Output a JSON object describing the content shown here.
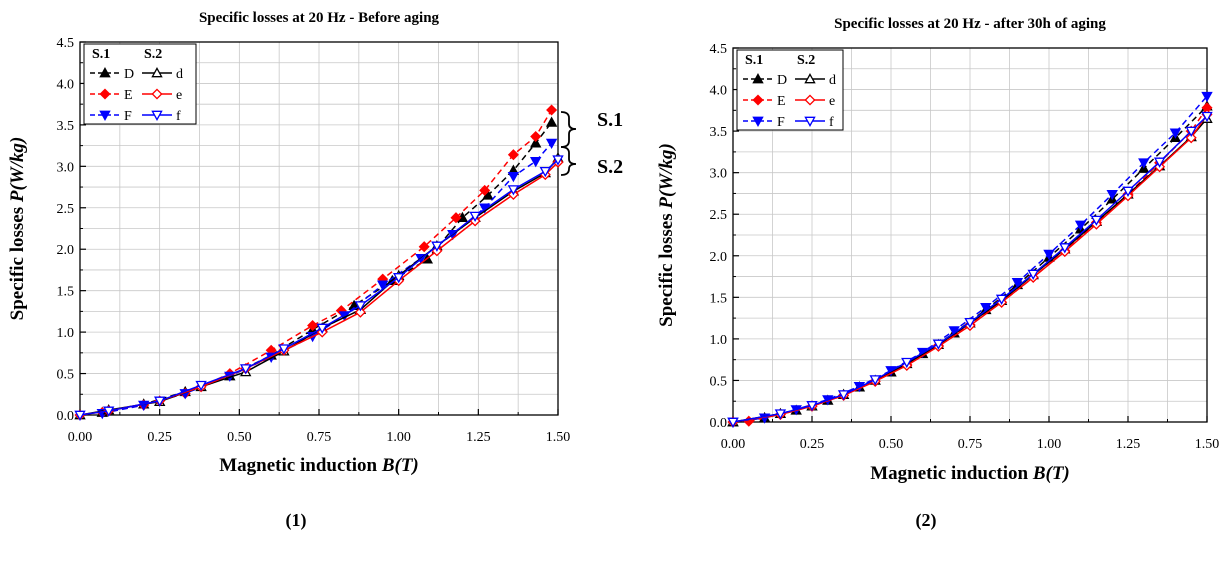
{
  "chart_data": [
    {
      "type": "line",
      "panel_label": "(1)",
      "title": "Specific losses at 20 Hz - Before aging",
      "xlabel_prefix": "Magnetic induction ",
      "xlabel_var": "B(T)",
      "ylabel_prefix": "Specific losses ",
      "ylabel_var": "P(W/kg)",
      "xlim": [
        0,
        1.5
      ],
      "ylim": [
        0,
        4.5
      ],
      "xticks": [
        "0.00",
        "0.25",
        "0.50",
        "0.75",
        "1.00",
        "1.25",
        "1.50"
      ],
      "yticks": [
        "0.0",
        "0.5",
        "1.0",
        "1.5",
        "2.0",
        "2.5",
        "3.0",
        "3.5",
        "4.0",
        "4.5"
      ],
      "grid": true,
      "legend_position": "top-left",
      "legend_groups": [
        "S.1",
        "S.2"
      ],
      "brace_labels": [
        "S.1",
        "S.2"
      ],
      "series": [
        {
          "name": "D",
          "color": "#000000",
          "dash": true,
          "marker": "triangle-up",
          "filled": true,
          "x": [
            0.07,
            0.2,
            0.33,
            0.47,
            0.6,
            0.73,
            0.86,
            0.98,
            1.09,
            1.2,
            1.28,
            1.36,
            1.43,
            1.48
          ],
          "y": [
            0.03,
            0.13,
            0.28,
            0.47,
            0.72,
            1.03,
            1.32,
            1.62,
            1.88,
            2.38,
            2.65,
            2.95,
            3.28,
            3.53
          ]
        },
        {
          "name": "E",
          "color": "#ff0000",
          "dash": true,
          "marker": "diamond",
          "filled": true,
          "x": [
            0.07,
            0.2,
            0.33,
            0.47,
            0.6,
            0.73,
            0.82,
            0.95,
            1.08,
            1.18,
            1.27,
            1.36,
            1.43,
            1.48
          ],
          "y": [
            0.03,
            0.12,
            0.26,
            0.5,
            0.78,
            1.08,
            1.26,
            1.64,
            2.03,
            2.38,
            2.71,
            3.14,
            3.36,
            3.68
          ]
        },
        {
          "name": "F",
          "color": "#0000ff",
          "dash": true,
          "marker": "triangle-down",
          "filled": true,
          "x": [
            0.07,
            0.2,
            0.33,
            0.47,
            0.6,
            0.73,
            0.83,
            0.95,
            1.07,
            1.17,
            1.27,
            1.36,
            1.43,
            1.48
          ],
          "y": [
            0.02,
            0.12,
            0.26,
            0.47,
            0.7,
            0.95,
            1.2,
            1.57,
            1.89,
            2.18,
            2.5,
            2.88,
            3.06,
            3.28
          ]
        },
        {
          "name": "d",
          "color": "#000000",
          "dash": false,
          "marker": "triangle-up",
          "filled": false,
          "x": [
            0.0,
            0.09,
            0.25,
            0.38,
            0.52,
            0.64,
            0.76,
            0.88,
            1.0,
            1.12,
            1.24,
            1.36,
            1.46,
            1.5
          ],
          "y": [
            0.0,
            0.06,
            0.16,
            0.34,
            0.52,
            0.77,
            1.05,
            1.27,
            1.68,
            2.04,
            2.38,
            2.7,
            2.92,
            3.1
          ]
        },
        {
          "name": "e",
          "color": "#ff0000",
          "dash": false,
          "marker": "diamond",
          "filled": false,
          "x": [
            0.0,
            0.09,
            0.25,
            0.38,
            0.52,
            0.64,
            0.76,
            0.88,
            1.0,
            1.12,
            1.24,
            1.36,
            1.46,
            1.5
          ],
          "y": [
            0.0,
            0.05,
            0.17,
            0.34,
            0.56,
            0.78,
            1.0,
            1.24,
            1.62,
            1.98,
            2.34,
            2.66,
            2.9,
            3.05
          ]
        },
        {
          "name": "f",
          "color": "#0000ff",
          "dash": false,
          "marker": "triangle-down",
          "filled": false,
          "x": [
            0.0,
            0.09,
            0.25,
            0.38,
            0.52,
            0.64,
            0.76,
            0.88,
            1.0,
            1.12,
            1.24,
            1.36,
            1.46,
            1.5
          ],
          "y": [
            0.0,
            0.05,
            0.17,
            0.36,
            0.56,
            0.8,
            1.05,
            1.32,
            1.66,
            2.04,
            2.4,
            2.72,
            2.94,
            3.08
          ]
        }
      ]
    },
    {
      "type": "line",
      "panel_label": "(2)",
      "title": "Specific losses at 20 Hz - after 30h of aging",
      "xlabel_prefix": "Magnetic induction ",
      "xlabel_var": "B(T)",
      "ylabel_prefix": "Specific losses ",
      "ylabel_var": "P(W/kg)",
      "xlim": [
        0,
        1.5
      ],
      "ylim": [
        0,
        4.5
      ],
      "xticks": [
        "0.00",
        "0.25",
        "0.50",
        "0.75",
        "1.00",
        "1.25",
        "1.50"
      ],
      "yticks": [
        "0.0",
        "0.5",
        "1.0",
        "1.5",
        "2.0",
        "2.5",
        "3.0",
        "3.5",
        "4.0",
        "4.5"
      ],
      "grid": true,
      "legend_position": "top-left",
      "legend_groups": [
        "S.1",
        "S.2"
      ],
      "series": [
        {
          "name": "D",
          "color": "#000000",
          "dash": true,
          "marker": "triangle-up",
          "filled": true,
          "x": [
            0.0,
            0.1,
            0.2,
            0.3,
            0.4,
            0.5,
            0.6,
            0.7,
            0.8,
            0.9,
            1.0,
            1.1,
            1.2,
            1.3,
            1.4,
            1.5
          ],
          "y": [
            0.0,
            0.05,
            0.14,
            0.26,
            0.42,
            0.6,
            0.82,
            1.07,
            1.35,
            1.65,
            1.98,
            2.32,
            2.68,
            3.05,
            3.42,
            3.8
          ]
        },
        {
          "name": "E",
          "color": "#ff0000",
          "dash": true,
          "marker": "diamond",
          "filled": true,
          "x": [
            0.05,
            0.15,
            0.25,
            0.35,
            0.45,
            0.55,
            0.65,
            0.75,
            0.85,
            0.95,
            1.05,
            1.15,
            1.25,
            1.35,
            1.45,
            1.5
          ],
          "y": [
            0.01,
            0.09,
            0.19,
            0.32,
            0.49,
            0.69,
            0.92,
            1.17,
            1.44,
            1.74,
            2.06,
            2.4,
            2.74,
            3.12,
            3.5,
            3.78
          ]
        },
        {
          "name": "F",
          "color": "#0000ff",
          "dash": true,
          "marker": "triangle-down",
          "filled": true,
          "x": [
            0.0,
            0.1,
            0.2,
            0.3,
            0.4,
            0.5,
            0.6,
            0.7,
            0.8,
            0.9,
            1.0,
            1.1,
            1.2,
            1.3,
            1.4,
            1.5
          ],
          "y": [
            0.0,
            0.05,
            0.15,
            0.27,
            0.43,
            0.62,
            0.84,
            1.1,
            1.38,
            1.68,
            2.02,
            2.37,
            2.74,
            3.12,
            3.48,
            3.92
          ]
        },
        {
          "name": "d",
          "color": "#000000",
          "dash": false,
          "marker": "triangle-up",
          "filled": false,
          "x": [
            0.0,
            0.15,
            0.25,
            0.35,
            0.45,
            0.55,
            0.65,
            0.75,
            0.85,
            0.95,
            1.05,
            1.15,
            1.25,
            1.35,
            1.45,
            1.5
          ],
          "y": [
            0.0,
            0.1,
            0.19,
            0.33,
            0.5,
            0.7,
            0.93,
            1.19,
            1.46,
            1.77,
            2.08,
            2.41,
            2.74,
            3.08,
            3.43,
            3.65
          ]
        },
        {
          "name": "e",
          "color": "#ff0000",
          "dash": false,
          "marker": "diamond",
          "filled": false,
          "x": [
            0.0,
            0.15,
            0.25,
            0.35,
            0.45,
            0.55,
            0.65,
            0.75,
            0.85,
            0.95,
            1.05,
            1.15,
            1.25,
            1.35,
            1.45,
            1.5
          ],
          "y": [
            0.0,
            0.09,
            0.19,
            0.32,
            0.49,
            0.68,
            0.91,
            1.16,
            1.44,
            1.74,
            2.05,
            2.38,
            2.72,
            3.07,
            3.42,
            3.7
          ]
        },
        {
          "name": "f",
          "color": "#0000ff",
          "dash": false,
          "marker": "triangle-down",
          "filled": false,
          "x": [
            0.0,
            0.15,
            0.25,
            0.35,
            0.45,
            0.55,
            0.65,
            0.75,
            0.85,
            0.95,
            1.05,
            1.15,
            1.25,
            1.35,
            1.45,
            1.5
          ],
          "y": [
            0.0,
            0.1,
            0.2,
            0.33,
            0.51,
            0.72,
            0.94,
            1.2,
            1.48,
            1.78,
            2.1,
            2.43,
            2.78,
            3.13,
            3.5,
            3.68
          ]
        }
      ]
    }
  ]
}
